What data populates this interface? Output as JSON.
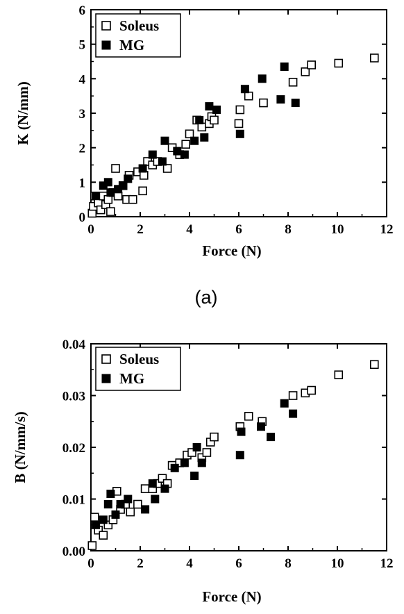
{
  "chart_data": [
    {
      "type": "scatter",
      "panel_label": "(a)",
      "xlabel": "Force (N)",
      "ylabel": "K (N/mm)",
      "xlim": [
        0,
        12
      ],
      "ylim": [
        0,
        6
      ],
      "xticks": [
        0,
        2,
        4,
        6,
        8,
        10,
        12
      ],
      "yticks": [
        0,
        1,
        2,
        3,
        4,
        5,
        6
      ],
      "x_tick_labels": [
        "0",
        "2",
        "4",
        "6",
        "8",
        "10",
        "12"
      ],
      "y_tick_labels": [
        "0",
        "1",
        "2",
        "3",
        "4",
        "5",
        "6"
      ],
      "legend_position": "top-left",
      "grid": false,
      "series": [
        {
          "name": "Soleus",
          "marker": "open-square",
          "points": [
            [
              0.05,
              0.1
            ],
            [
              0.1,
              0.3
            ],
            [
              0.15,
              0.6
            ],
            [
              0.3,
              0.4
            ],
            [
              0.4,
              0.2
            ],
            [
              0.5,
              0.6
            ],
            [
              0.6,
              0.35
            ],
            [
              0.7,
              0.5
            ],
            [
              0.8,
              0.15
            ],
            [
              0.9,
              0.7
            ],
            [
              1.0,
              1.4
            ],
            [
              1.1,
              0.6
            ],
            [
              1.3,
              0.9
            ],
            [
              1.45,
              0.5
            ],
            [
              1.55,
              1.2
            ],
            [
              1.7,
              0.5
            ],
            [
              1.9,
              1.3
            ],
            [
              2.1,
              0.75
            ],
            [
              2.15,
              1.2
            ],
            [
              2.3,
              1.6
            ],
            [
              2.5,
              1.5
            ],
            [
              2.7,
              1.6
            ],
            [
              3.1,
              1.4
            ],
            [
              3.3,
              2.0
            ],
            [
              3.6,
              1.8
            ],
            [
              3.85,
              2.1
            ],
            [
              4.0,
              2.4
            ],
            [
              4.3,
              2.8
            ],
            [
              4.5,
              2.6
            ],
            [
              4.8,
              2.7
            ],
            [
              4.9,
              2.9
            ],
            [
              5.0,
              2.8
            ],
            [
              6.0,
              2.7
            ],
            [
              6.05,
              3.1
            ],
            [
              6.4,
              3.5
            ],
            [
              7.0,
              3.3
            ],
            [
              8.2,
              3.9
            ],
            [
              8.7,
              4.2
            ],
            [
              8.95,
              4.4
            ],
            [
              10.05,
              4.45
            ],
            [
              11.5,
              4.6
            ]
          ]
        },
        {
          "name": "MG",
          "marker": "filled-square",
          "points": [
            [
              0.2,
              0.6
            ],
            [
              0.5,
              0.9
            ],
            [
              0.7,
              1.0
            ],
            [
              0.8,
              0.7
            ],
            [
              1.1,
              0.8
            ],
            [
              1.3,
              0.9
            ],
            [
              1.5,
              1.1
            ],
            [
              2.1,
              1.4
            ],
            [
              2.5,
              1.8
            ],
            [
              2.9,
              1.6
            ],
            [
              3.0,
              2.2
            ],
            [
              3.5,
              1.9
            ],
            [
              3.8,
              1.8
            ],
            [
              4.2,
              2.2
            ],
            [
              4.4,
              2.8
            ],
            [
              4.6,
              2.3
            ],
            [
              4.8,
              3.2
            ],
            [
              5.1,
              3.1
            ],
            [
              6.05,
              2.4
            ],
            [
              6.25,
              3.7
            ],
            [
              6.95,
              4.0
            ],
            [
              7.7,
              3.4
            ],
            [
              7.85,
              4.35
            ],
            [
              8.3,
              3.3
            ]
          ]
        }
      ]
    },
    {
      "type": "scatter",
      "panel_label": "",
      "xlabel": "Force (N)",
      "ylabel": "B (N/mm/s)",
      "xlim": [
        0,
        12
      ],
      "ylim": [
        0,
        0.04
      ],
      "xticks": [
        0,
        2,
        4,
        6,
        8,
        10,
        12
      ],
      "yticks": [
        0,
        0.01,
        0.02,
        0.03,
        0.04
      ],
      "x_tick_labels": [
        "0",
        "2",
        "4",
        "6",
        "8",
        "10",
        "12"
      ],
      "y_tick_labels": [
        "0.00",
        "0.01",
        "0.02",
        "0.03",
        "0.04"
      ],
      "legend_position": "top-left",
      "grid": false,
      "series": [
        {
          "name": "Soleus",
          "marker": "open-square",
          "points": [
            [
              0.05,
              0.001
            ],
            [
              0.15,
              0.0065
            ],
            [
              0.3,
              0.004
            ],
            [
              0.5,
              0.003
            ],
            [
              0.7,
              0.005
            ],
            [
              0.9,
              0.006
            ],
            [
              1.05,
              0.0115
            ],
            [
              1.2,
              0.008
            ],
            [
              1.4,
              0.009
            ],
            [
              1.6,
              0.0075
            ],
            [
              1.9,
              0.009
            ],
            [
              2.2,
              0.012
            ],
            [
              2.5,
              0.012
            ],
            [
              2.7,
              0.013
            ],
            [
              2.9,
              0.014
            ],
            [
              3.1,
              0.013
            ],
            [
              3.3,
              0.0165
            ],
            [
              3.6,
              0.017
            ],
            [
              3.9,
              0.0185
            ],
            [
              4.1,
              0.019
            ],
            [
              4.5,
              0.018
            ],
            [
              4.7,
              0.019
            ],
            [
              4.85,
              0.021
            ],
            [
              5.0,
              0.022
            ],
            [
              6.05,
              0.024
            ],
            [
              6.4,
              0.026
            ],
            [
              6.95,
              0.025
            ],
            [
              8.2,
              0.03
            ],
            [
              8.7,
              0.0305
            ],
            [
              8.95,
              0.031
            ],
            [
              10.05,
              0.034
            ],
            [
              11.5,
              0.036
            ]
          ]
        },
        {
          "name": "MG",
          "marker": "filled-square",
          "points": [
            [
              0.2,
              0.005
            ],
            [
              0.5,
              0.006
            ],
            [
              0.7,
              0.009
            ],
            [
              0.8,
              0.011
            ],
            [
              1.0,
              0.007
            ],
            [
              1.2,
              0.009
            ],
            [
              1.5,
              0.01
            ],
            [
              2.2,
              0.008
            ],
            [
              2.5,
              0.013
            ],
            [
              2.6,
              0.01
            ],
            [
              3.0,
              0.012
            ],
            [
              3.4,
              0.016
            ],
            [
              3.8,
              0.017
            ],
            [
              4.2,
              0.0145
            ],
            [
              4.3,
              0.02
            ],
            [
              4.5,
              0.017
            ],
            [
              6.05,
              0.0185
            ],
            [
              6.1,
              0.023
            ],
            [
              6.9,
              0.024
            ],
            [
              7.3,
              0.022
            ],
            [
              7.85,
              0.0285
            ],
            [
              8.2,
              0.0265
            ]
          ]
        }
      ]
    }
  ]
}
